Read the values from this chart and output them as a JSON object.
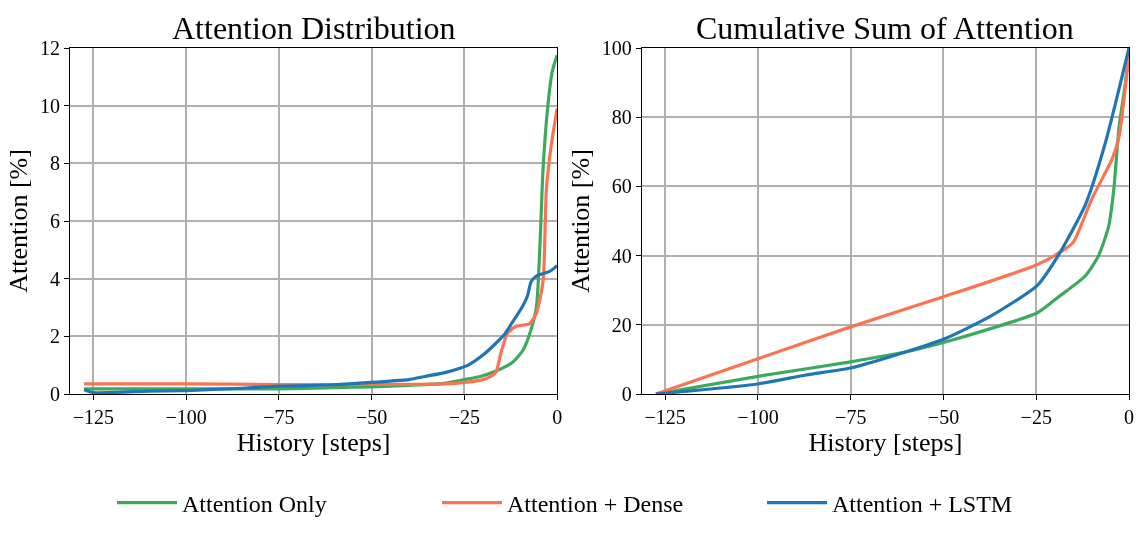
{
  "chart_data": [
    {
      "type": "line",
      "title": "Attention Distribution",
      "xlabel": "History [steps]",
      "ylabel": "Attention [%]",
      "xlim": [
        -131.3,
        0
      ],
      "ylim": [
        0,
        12
      ],
      "xticks": [
        {
          "value": -125,
          "label": "−125"
        },
        {
          "value": -100,
          "label": "−100"
        },
        {
          "value": -75,
          "label": "−75"
        },
        {
          "value": -50,
          "label": "−50"
        },
        {
          "value": -25,
          "label": "−25"
        },
        0
      ],
      "yticks": [
        0,
        2,
        4,
        6,
        8,
        10,
        12
      ],
      "grid": true,
      "legend": "bottom",
      "line_style": "solid",
      "marker": "none",
      "series": [
        {
          "name": "Attention Only",
          "color": "#3aab5d",
          "x": [
            -127.5,
            -110,
            -100,
            -75,
            -60,
            -50,
            -40,
            -30,
            -25,
            -21,
            -16.5,
            -12,
            -9.3,
            -7.5,
            -5.6,
            -4.7,
            -3.8,
            -2.5,
            -1.3,
            0
          ],
          "values": [
            0.18,
            0.18,
            0.18,
            0.18,
            0.22,
            0.25,
            0.3,
            0.38,
            0.5,
            0.6,
            0.8,
            1.1,
            1.5,
            2.05,
            3.0,
            4.95,
            7.8,
            10.0,
            11.2,
            11.75
          ]
        },
        {
          "name": "Attention + Dense",
          "color": "#fb7350",
          "x": [
            -127.5,
            -100,
            -75,
            -50,
            -30,
            -25,
            -20,
            -18,
            -16.5,
            -15.2,
            -13.4,
            -11.1,
            -7.5,
            -5.6,
            -3.8,
            -2.9,
            -1.5,
            0
          ],
          "values": [
            0.35,
            0.35,
            0.33,
            0.33,
            0.35,
            0.4,
            0.5,
            0.6,
            0.75,
            1.4,
            2.1,
            2.35,
            2.43,
            2.8,
            3.9,
            7.1,
            8.7,
            9.9
          ]
        },
        {
          "name": "Attention + LSTM",
          "color": "#1f75b5",
          "x": [
            -127.5,
            -125,
            -110,
            -100,
            -85,
            -75,
            -60,
            -50,
            -45,
            -40,
            -36,
            -30,
            -26,
            -24,
            -20,
            -17,
            -14,
            -12,
            -9.5,
            -8,
            -7,
            -5.5,
            -2,
            0
          ],
          "values": [
            0.15,
            0.05,
            0.1,
            0.12,
            0.2,
            0.27,
            0.32,
            0.4,
            0.45,
            0.5,
            0.6,
            0.75,
            0.9,
            1.0,
            1.35,
            1.7,
            2.1,
            2.5,
            3.0,
            3.4,
            3.9,
            4.1,
            4.25,
            4.45
          ]
        }
      ]
    },
    {
      "type": "line",
      "title": "Cumulative Sum of Attention",
      "xlabel": "History [steps]",
      "ylabel": "Attention [%]",
      "xlim": [
        -131.3,
        0
      ],
      "ylim": [
        0,
        100
      ],
      "xticks": [
        {
          "value": -125,
          "label": "−125"
        },
        {
          "value": -100,
          "label": "−100"
        },
        {
          "value": -75,
          "label": "−75"
        },
        {
          "value": -50,
          "label": "−50"
        },
        {
          "value": -25,
          "label": "−25"
        },
        0
      ],
      "yticks": [
        0,
        20,
        40,
        60,
        80,
        100
      ],
      "grid": true,
      "line_style": "solid",
      "marker": "none",
      "series": [
        {
          "name": "Attention Only",
          "color": "#3aab5d",
          "x": [
            -127.5,
            -100,
            -75,
            -60,
            -50,
            -37.3,
            -24.8,
            -19.2,
            -11.8,
            -8.2,
            -5.5,
            -4.1,
            -2.7,
            -0.9,
            0
          ],
          "values": [
            0,
            5.1,
            9.3,
            12.2,
            14.9,
            18.9,
            23.4,
            27.9,
            34.1,
            40,
            48.4,
            59.1,
            77,
            90.4,
            100
          ]
        },
        {
          "name": "Attention + Dense",
          "color": "#fb7350",
          "x": [
            -127.5,
            -100,
            -75,
            -50,
            -25,
            -18.2,
            -15,
            -10,
            -4.5,
            -2.7,
            0
          ],
          "values": [
            0,
            10.2,
            19.4,
            28.1,
            37.3,
            41.2,
            43.9,
            56.4,
            68,
            74.3,
            98.4
          ]
        },
        {
          "name": "Attention + LSTM",
          "color": "#1f75b5",
          "x": [
            -127.5,
            -100,
            -87,
            -75,
            -60,
            -50,
            -37.3,
            -24.7,
            -19.1,
            -11.8,
            -6.4,
            0
          ],
          "values": [
            0,
            2.9,
            5.5,
            7.5,
            12.2,
            15.8,
            22.5,
            31.4,
            40,
            54.6,
            72.5,
            100
          ]
        }
      ]
    }
  ]
}
